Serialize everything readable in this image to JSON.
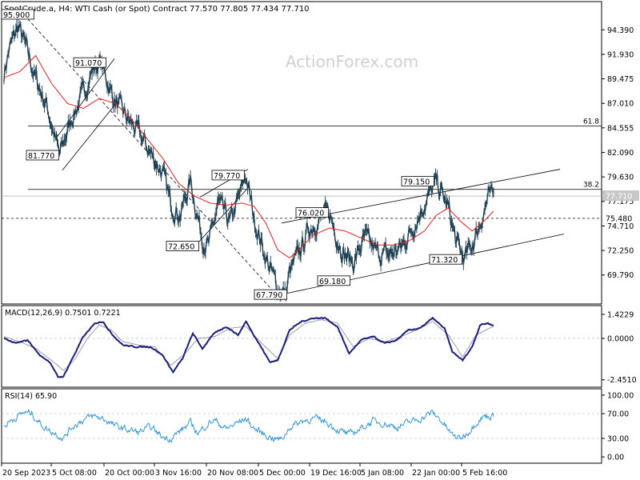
{
  "header": {
    "symbol": "SpotCrude.a, H4:  WTI Cash (or Spot) Contract  77.570 77.805 77.434 77.710"
  },
  "watermark": "ActionForex.com",
  "chart_data": [
    {
      "type": "candlestick",
      "title": "SpotCrude.a, H4:  WTI Cash (or Spot) Contract  77.570 77.805 77.434 77.710",
      "ylim": [
        67.2,
        96.9
      ],
      "y_ticks": [
        94.39,
        91.93,
        89.475,
        87.01,
        84.555,
        82.09,
        79.63,
        77.175,
        74.71,
        72.25,
        69.79
      ],
      "y_tick_labels": [
        "94.390",
        "91.930",
        "89.475",
        "87.010",
        "84.555",
        "82.090",
        "79.630",
        "77.175",
        "74.710",
        "72.250",
        "69.790"
      ],
      "x_tick_labels": [
        "20 Sep 2023",
        "5 Oct 08:00",
        "20 Oct 00:00",
        "3 Nov 16:00",
        "20 Nov 08:00",
        "5 Dec 00:00",
        "19 Dec 16:00",
        "5 Jan 08:00",
        "22 Jan 00:00",
        "5 Feb 16:00"
      ],
      "price_series_color": "#1c3f52",
      "series": [
        {
          "name": "price",
          "color": "#1c3f52",
          "anchors": [
            [
              0,
              90.0
            ],
            [
              6,
              92.3
            ],
            [
              18,
              94.8
            ],
            [
              28,
              92.5
            ],
            [
              40,
              89.5
            ],
            [
              55,
              86.5
            ],
            [
              70,
              81.8
            ],
            [
              85,
              85.5
            ],
            [
              100,
              88.0
            ],
            [
              112,
              90.5
            ],
            [
              122,
              91.1
            ],
            [
              138,
              87.5
            ],
            [
              155,
              85.5
            ],
            [
              170,
              84.0
            ],
            [
              185,
              82.0
            ],
            [
              200,
              80.0
            ],
            [
              210,
              77.0
            ],
            [
              222,
              75.8
            ],
            [
              235,
              79.2
            ],
            [
              250,
              73.5
            ],
            [
              258,
              72.7
            ],
            [
              270,
              77.0
            ],
            [
              285,
              75.0
            ],
            [
              298,
              78.0
            ],
            [
              305,
              79.8
            ],
            [
              315,
              75.5
            ],
            [
              330,
              71.5
            ],
            [
              345,
              68.5
            ],
            [
              355,
              67.8
            ],
            [
              360,
              70.0
            ],
            [
              372,
              72.0
            ],
            [
              385,
              74.5
            ],
            [
              400,
              75.5
            ],
            [
              410,
              76.0
            ],
            [
              418,
              74.0
            ],
            [
              428,
              72.0
            ],
            [
              440,
              71.0
            ],
            [
              455,
              73.5
            ],
            [
              470,
              72.0
            ],
            [
              485,
              71.8
            ],
            [
              500,
              72.5
            ],
            [
              515,
              74.5
            ],
            [
              530,
              77.0
            ],
            [
              545,
              79.1
            ],
            [
              560,
              76.5
            ],
            [
              570,
              73.0
            ],
            [
              580,
              71.4
            ],
            [
              590,
              72.8
            ],
            [
              600,
              75.0
            ],
            [
              610,
              77.5
            ],
            [
              617,
              77.7
            ]
          ]
        },
        {
          "name": "ma",
          "color": "#e0201b",
          "anchors": [
            [
              0,
              89.6
            ],
            [
              20,
              90.2
            ],
            [
              40,
              91.8
            ],
            [
              60,
              89.0
            ],
            [
              80,
              87.0
            ],
            [
              100,
              86.5
            ],
            [
              120,
              87.5
            ],
            [
              140,
              87.0
            ],
            [
              160,
              85.5
            ],
            [
              180,
              83.5
            ],
            [
              200,
              81.5
            ],
            [
              220,
              79.0
            ],
            [
              240,
              77.7
            ],
            [
              260,
              77.0
            ],
            [
              280,
              76.8
            ],
            [
              300,
              77.0
            ],
            [
              315,
              76.7
            ],
            [
              330,
              75.0
            ],
            [
              345,
              72.3
            ],
            [
              360,
              71.5
            ],
            [
              375,
              72.6
            ],
            [
              390,
              73.8
            ],
            [
              410,
              74.5
            ],
            [
              430,
              74.2
            ],
            [
              450,
              73.5
            ],
            [
              470,
              72.8
            ],
            [
              490,
              72.8
            ],
            [
              510,
              73.2
            ],
            [
              530,
              74.2
            ],
            [
              545,
              75.8
            ],
            [
              560,
              76.5
            ],
            [
              575,
              75.2
            ],
            [
              590,
              74.2
            ],
            [
              605,
              75.2
            ],
            [
              617,
              76.2
            ]
          ]
        }
      ],
      "last_price": 77.71,
      "last_price_label": "77.710",
      "dashed_level": 75.48,
      "dashed_level_label": "75.480",
      "fib_lines": [
        {
          "label": "61.8",
          "value": 84.75
        },
        {
          "label": "38.2",
          "value": 78.38
        }
      ],
      "annotations": [
        "95.900",
        "91.070",
        "81.770",
        "79.770",
        "72.650",
        "67.790",
        "76.020",
        "69.180",
        "79.150",
        "71.320"
      ],
      "annotation_values": [
        95.9,
        91.07,
        81.77,
        79.77,
        72.65,
        67.79,
        76.02,
        69.18,
        79.15,
        71.32
      ]
    },
    {
      "type": "line",
      "title": "MACD(12,26,9) 0.7501 0.7221",
      "ylim": [
        -2.7,
        1.75
      ],
      "y_ticks": [
        1.4229,
        0.0,
        -2.451
      ],
      "y_tick_labels": [
        "1.4229",
        "0.0000",
        "-2.4510"
      ],
      "series": [
        {
          "name": "MACD",
          "color": "#1b1f7a",
          "anchors": [
            [
              0,
              0
            ],
            [
              15,
              -0.3
            ],
            [
              30,
              -0.1
            ],
            [
              45,
              -1.0
            ],
            [
              58,
              -1.4
            ],
            [
              68,
              -2.3
            ],
            [
              75,
              -2.25
            ],
            [
              85,
              -1.3
            ],
            [
              100,
              0.1
            ],
            [
              115,
              0.9
            ],
            [
              125,
              1.0
            ],
            [
              135,
              0.3
            ],
            [
              150,
              -0.4
            ],
            [
              165,
              -0.5
            ],
            [
              185,
              -0.5
            ],
            [
              200,
              -1.0
            ],
            [
              213,
              -2.0
            ],
            [
              225,
              -1.2
            ],
            [
              238,
              0.3
            ],
            [
              250,
              -0.6
            ],
            [
              265,
              0.3
            ],
            [
              280,
              0.7
            ],
            [
              295,
              0.2
            ],
            [
              305,
              1.0
            ],
            [
              320,
              -0.2
            ],
            [
              335,
              -1.4
            ],
            [
              345,
              -1.3
            ],
            [
              360,
              0.5
            ],
            [
              375,
              1.0
            ],
            [
              390,
              1.2
            ],
            [
              405,
              1.2
            ],
            [
              420,
              0.7
            ],
            [
              435,
              -0.9
            ],
            [
              450,
              -0.1
            ],
            [
              465,
              0.1
            ],
            [
              480,
              -0.3
            ],
            [
              495,
              -0.1
            ],
            [
              510,
              0.5
            ],
            [
              525,
              0.6
            ],
            [
              540,
              1.2
            ],
            [
              555,
              0.6
            ],
            [
              565,
              -0.8
            ],
            [
              578,
              -1.3
            ],
            [
              590,
              -0.5
            ],
            [
              600,
              0.8
            ],
            [
              610,
              0.9
            ],
            [
              617,
              0.75
            ]
          ]
        },
        {
          "name": "Signal",
          "color": "#9a9ab0",
          "anchors": [
            [
              0,
              0.1
            ],
            [
              20,
              -0.2
            ],
            [
              40,
              -0.6
            ],
            [
              60,
              -1.3
            ],
            [
              75,
              -1.9
            ],
            [
              90,
              -1.2
            ],
            [
              105,
              0
            ],
            [
              120,
              0.8
            ],
            [
              135,
              0.5
            ],
            [
              150,
              -0.2
            ],
            [
              170,
              -0.4
            ],
            [
              190,
              -0.5
            ],
            [
              210,
              -1.6
            ],
            [
              228,
              -0.9
            ],
            [
              245,
              0
            ],
            [
              265,
              0.1
            ],
            [
              285,
              0.6
            ],
            [
              305,
              0.7
            ],
            [
              325,
              -0.3
            ],
            [
              345,
              -1.2
            ],
            [
              360,
              0.2
            ],
            [
              380,
              0.9
            ],
            [
              400,
              1.1
            ],
            [
              420,
              0.9
            ],
            [
              440,
              -0.5
            ],
            [
              460,
              0
            ],
            [
              480,
              -0.2
            ],
            [
              500,
              0.1
            ],
            [
              520,
              0.5
            ],
            [
              540,
              1.0
            ],
            [
              560,
              0.2
            ],
            [
              578,
              -1.1
            ],
            [
              595,
              0.2
            ],
            [
              617,
              0.72
            ]
          ]
        }
      ]
    },
    {
      "type": "line",
      "title": "RSI(14) 65.90",
      "ylim": [
        -5,
        105
      ],
      "y_ticks": [
        100,
        70,
        30,
        0
      ],
      "y_tick_labels": [
        "100.00",
        "70.00",
        "30.00",
        "0.00"
      ],
      "series": [
        {
          "name": "RSI",
          "color": "#1a8be0",
          "anchors": [
            [
              0,
              50
            ],
            [
              10,
              60
            ],
            [
              25,
              72
            ],
            [
              35,
              70
            ],
            [
              45,
              55
            ],
            [
              55,
              44
            ],
            [
              65,
              38
            ],
            [
              75,
              30
            ],
            [
              85,
              48
            ],
            [
              100,
              60
            ],
            [
              112,
              66
            ],
            [
              125,
              62
            ],
            [
              140,
              50
            ],
            [
              155,
              44
            ],
            [
              170,
              40
            ],
            [
              185,
              48
            ],
            [
              200,
              32
            ],
            [
              210,
              30
            ],
            [
              222,
              42
            ],
            [
              235,
              55
            ],
            [
              245,
              38
            ],
            [
              255,
              52
            ],
            [
              265,
              60
            ],
            [
              280,
              45
            ],
            [
              295,
              56
            ],
            [
              305,
              62
            ],
            [
              315,
              46
            ],
            [
              330,
              35
            ],
            [
              340,
              30
            ],
            [
              350,
              28
            ],
            [
              360,
              48
            ],
            [
              375,
              58
            ],
            [
              390,
              62
            ],
            [
              405,
              58
            ],
            [
              420,
              44
            ],
            [
              435,
              36
            ],
            [
              450,
              46
            ],
            [
              465,
              58
            ],
            [
              480,
              54
            ],
            [
              495,
              48
            ],
            [
              510,
              56
            ],
            [
              525,
              62
            ],
            [
              540,
              72
            ],
            [
              550,
              60
            ],
            [
              565,
              35
            ],
            [
              575,
              30
            ],
            [
              585,
              40
            ],
            [
              595,
              56
            ],
            [
              605,
              66
            ],
            [
              617,
              66
            ]
          ]
        }
      ],
      "levels": [
        70,
        30
      ]
    }
  ]
}
